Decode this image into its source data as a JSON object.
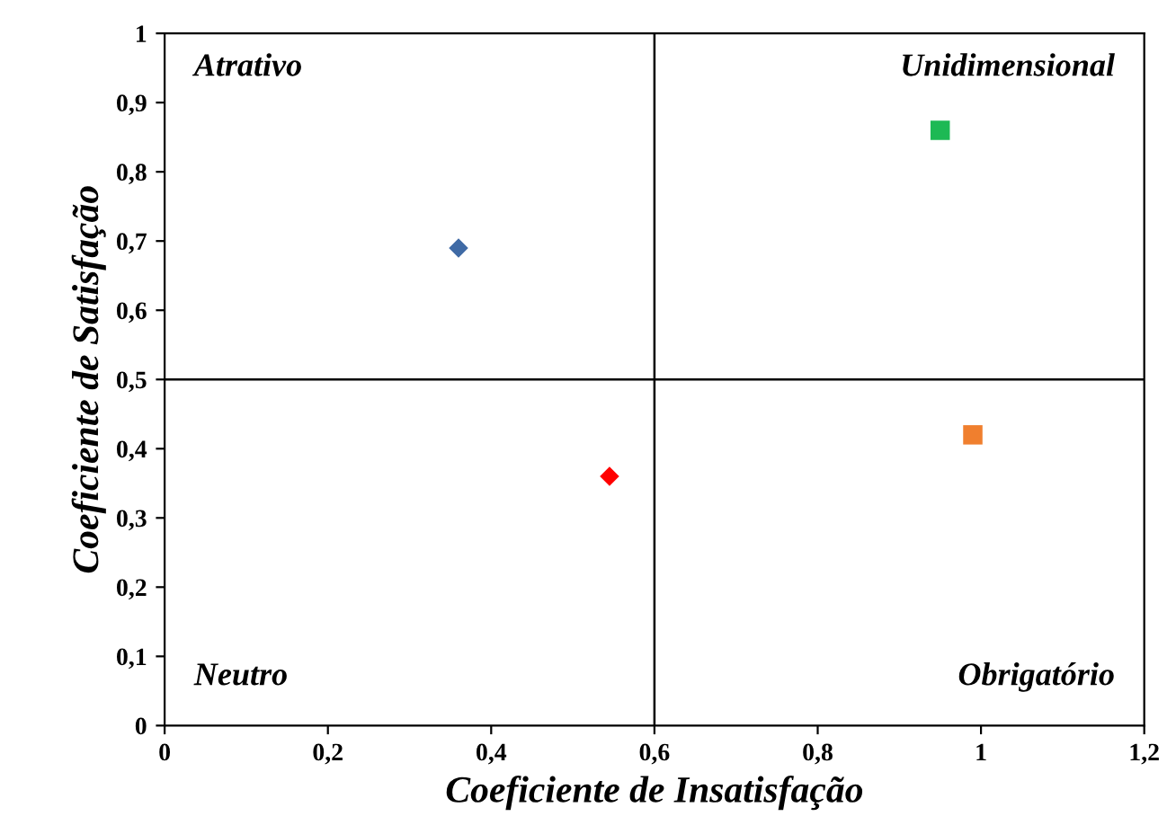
{
  "chart_data": {
    "type": "scatter",
    "xlabel": "Coeficiente de Insatisfação",
    "ylabel": "Coeficiente de Satisfação",
    "xlim": [
      0,
      1.2
    ],
    "ylim": [
      0,
      1
    ],
    "xticks": [
      0,
      {
        "value": 0.2,
        "label": "0,2"
      },
      {
        "value": 0.4,
        "label": "0,4"
      },
      {
        "value": 0.6,
        "label": "0,6"
      },
      {
        "value": 0.8,
        "label": "0,8"
      },
      1,
      {
        "value": 1.2,
        "label": "1,2"
      }
    ],
    "yticks": [
      0,
      {
        "value": 0.1,
        "label": "0,1"
      },
      {
        "value": 0.2,
        "label": "0,2"
      },
      {
        "value": 0.3,
        "label": "0,3"
      },
      {
        "value": 0.4,
        "label": "0,4"
      },
      {
        "value": 0.5,
        "label": "0,5"
      },
      {
        "value": 0.6,
        "label": "0,6"
      },
      {
        "value": 0.7,
        "label": "0,7"
      },
      {
        "value": 0.8,
        "label": "0,8"
      },
      {
        "value": 0.9,
        "label": "0,9"
      },
      1
    ],
    "grid": false,
    "legend": false,
    "series": [
      {
        "color": "#3f6aa5",
        "marker": "diamond",
        "x": [
          0.36
        ],
        "values": [
          0.69
        ]
      },
      {
        "color": "#ff0000",
        "marker": "diamond",
        "x": [
          0.545
        ],
        "values": [
          0.36
        ]
      },
      {
        "color": "#1db954",
        "marker": "square",
        "x": [
          0.95
        ],
        "values": [
          0.86
        ]
      },
      {
        "color": "#f07f2e",
        "marker": "square",
        "x": [
          0.99
        ],
        "values": [
          0.42
        ]
      }
    ],
    "ref_lines": [
      {
        "axis": "x",
        "value": 0.6,
        "color": "#000000"
      },
      {
        "axis": "y",
        "value": 0.5,
        "color": "#000000"
      }
    ],
    "annotations": [
      "Atrativo",
      "Unidimensional",
      "Neutro",
      "Obrigatório"
    ]
  }
}
